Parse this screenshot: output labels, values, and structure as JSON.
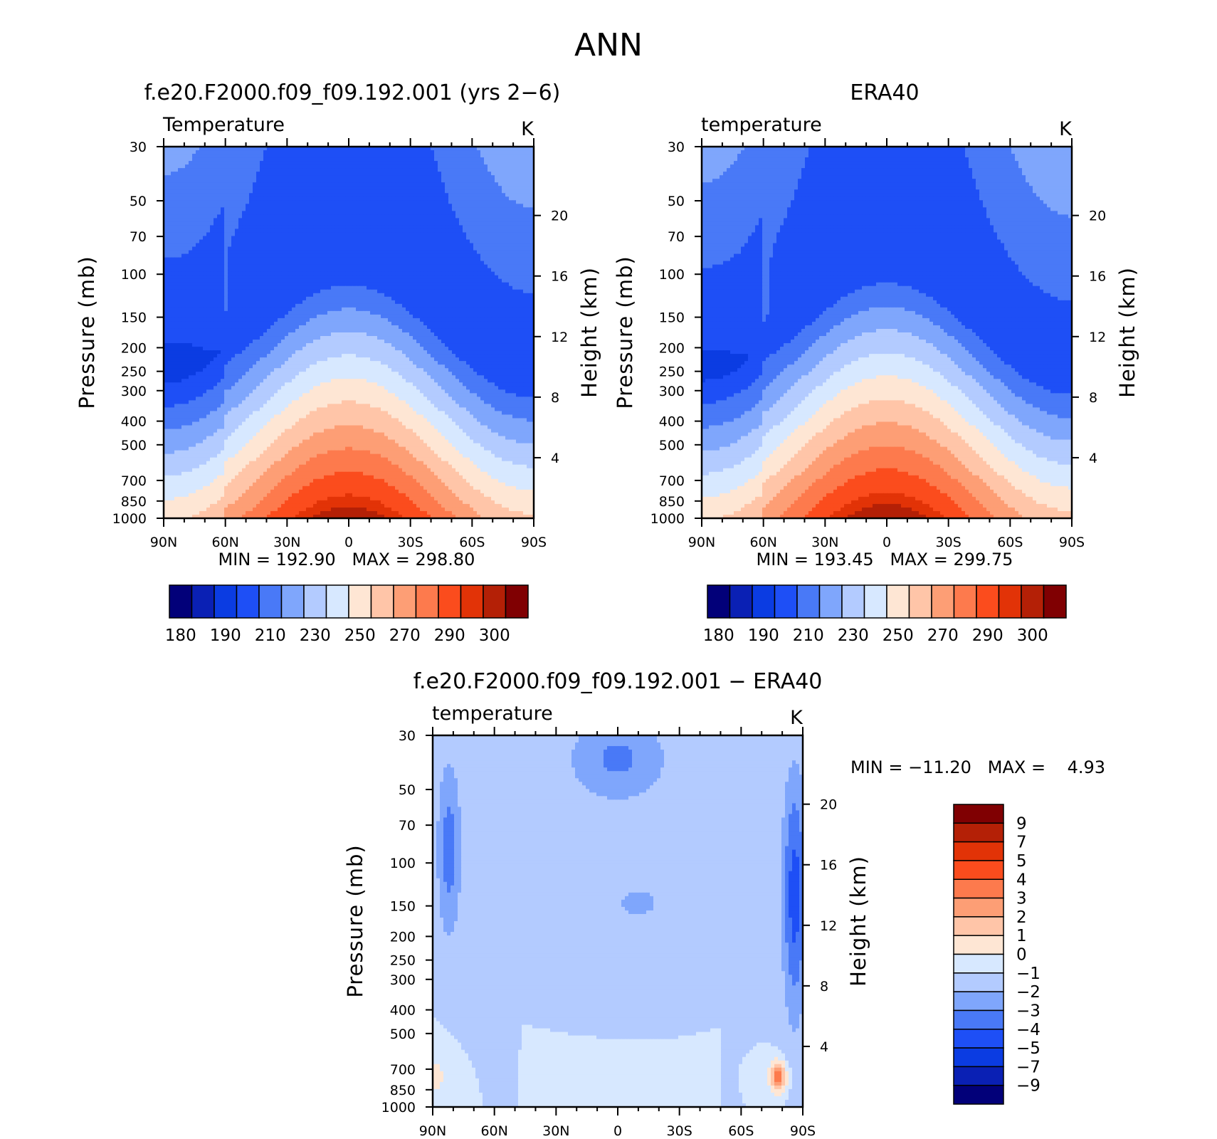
{
  "figure": {
    "title": "ANN"
  },
  "chart_data": [
    {
      "type": "heatmap",
      "title": "f.e20.F2000.f09_f09.192.001 (yrs 2−6)",
      "variable_label": "Temperature",
      "units": "K",
      "x_tick_labels": [
        "90N",
        "60N",
        "30N",
        "0",
        "30S",
        "60S",
        "90S"
      ],
      "y_tick_labels": [
        "30",
        "50",
        "70",
        "100",
        "150",
        "200",
        "250",
        "300",
        "400",
        "500",
        "700",
        "850",
        "1000"
      ],
      "y2_tick_labels": [
        "20",
        "16",
        "12",
        "8",
        "4"
      ],
      "ylabel": "Pressure (mb)",
      "y2label": "Height (km)",
      "min_max_text": "MIN = 192.90   MAX = 298.80",
      "min": 192.9,
      "max": 298.8,
      "colorbar_labels": [
        "180",
        "190",
        "210",
        "230",
        "250",
        "270",
        "290",
        "300"
      ],
      "levels": [
        180,
        185,
        190,
        200,
        210,
        220,
        230,
        240,
        250,
        260,
        270,
        280,
        290,
        295,
        300
      ],
      "colors": [
        "#020079",
        "#0a20b4",
        "#0b3ce2",
        "#1e4ff6",
        "#4979f7",
        "#7fa6fc",
        "#b3cbff",
        "#d7e8ff",
        "#fee6d4",
        "#ffc5a8",
        "#fd9e75",
        "#fd7a4d",
        "#fb4c1d",
        "#e23307",
        "#b42006",
        "#800002"
      ],
      "contour_levels_shown": [
        300,
        295,
        290,
        280,
        270,
        260,
        250,
        240,
        230,
        220,
        210,
        200
      ]
    },
    {
      "type": "heatmap",
      "title": "ERA40",
      "variable_label": "temperature",
      "units": "K",
      "x_tick_labels": [
        "90N",
        "60N",
        "30N",
        "0",
        "30S",
        "60S",
        "90S"
      ],
      "y_tick_labels": [
        "30",
        "50",
        "70",
        "100",
        "150",
        "200",
        "250",
        "300",
        "400",
        "500",
        "700",
        "850",
        "1000"
      ],
      "y2_tick_labels": [
        "20",
        "16",
        "12",
        "8",
        "4"
      ],
      "ylabel": "Pressure (mb)",
      "y2label": "Height (km)",
      "min_max_text": "MIN = 193.45   MAX = 299.75",
      "min": 193.45,
      "max": 299.75,
      "colorbar_labels": [
        "180",
        "190",
        "210",
        "230",
        "250",
        "270",
        "290",
        "300"
      ],
      "levels": [
        180,
        185,
        190,
        200,
        210,
        220,
        230,
        240,
        250,
        260,
        270,
        280,
        290,
        295,
        300
      ],
      "colors": [
        "#020079",
        "#0a20b4",
        "#0b3ce2",
        "#1e4ff6",
        "#4979f7",
        "#7fa6fc",
        "#b3cbff",
        "#d7e8ff",
        "#fee6d4",
        "#ffc5a8",
        "#fd9e75",
        "#fd7a4d",
        "#fb4c1d",
        "#e23307",
        "#b42006",
        "#800002"
      ]
    },
    {
      "type": "heatmap",
      "title": "f.e20.F2000.f09_f09.192.001 − ERA40",
      "variable_label": "temperature",
      "units": "K",
      "x_tick_labels": [
        "90N",
        "60N",
        "30N",
        "0",
        "30S",
        "60S",
        "90S"
      ],
      "y_tick_labels": [
        "30",
        "50",
        "70",
        "100",
        "150",
        "200",
        "250",
        "300",
        "400",
        "500",
        "700",
        "850",
        "1000"
      ],
      "y2_tick_labels": [
        "20",
        "16",
        "12",
        "8",
        "4"
      ],
      "ylabel": "Pressure (mb)",
      "y2label": "Height (km)",
      "min_max_text": "MIN = −11.20   MAX =    4.93",
      "min": -11.2,
      "max": 4.93,
      "colorbar_labels": [
        "9",
        "7",
        "5",
        "4",
        "3",
        "2",
        "1",
        "0",
        "−1",
        "−2",
        "−3",
        "−4",
        "−5",
        "−7",
        "−9"
      ],
      "levels": [
        -9,
        -7,
        -5,
        -4,
        -3,
        -2,
        -1,
        0,
        1,
        2,
        3,
        4,
        5,
        7,
        9
      ],
      "colors": [
        "#020079",
        "#0a20b4",
        "#0b3ce2",
        "#1e4ff6",
        "#4979f7",
        "#7fa6fc",
        "#b3cbff",
        "#d7e8ff",
        "#fee6d4",
        "#ffc5a8",
        "#fd9e75",
        "#fd7a4d",
        "#fb4c1d",
        "#e23307",
        "#b42006",
        "#800002"
      ]
    }
  ]
}
